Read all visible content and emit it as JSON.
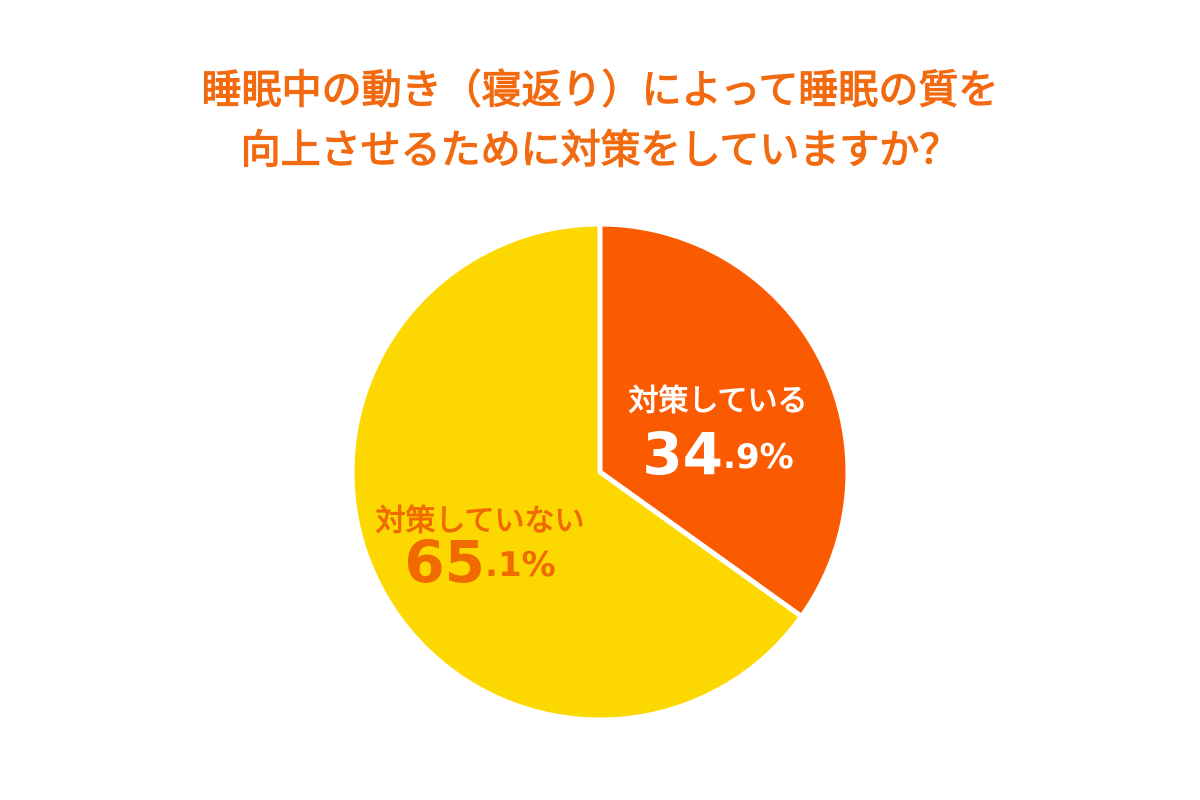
{
  "chart_data": {
    "type": "pie",
    "title": [
      "睡眠中の動き（寝返り）によって睡眠の質を",
      "向上させるために対策をしていますか？"
    ],
    "categories": [
      "対策している",
      "対策していない"
    ],
    "values": [
      34.9,
      65.1
    ],
    "value_labels": [
      "34.9%",
      "65.1%"
    ],
    "colors": [
      "#fa5a00",
      "#fcd800"
    ],
    "start_angle": 0,
    "direction": "clockwise"
  }
}
